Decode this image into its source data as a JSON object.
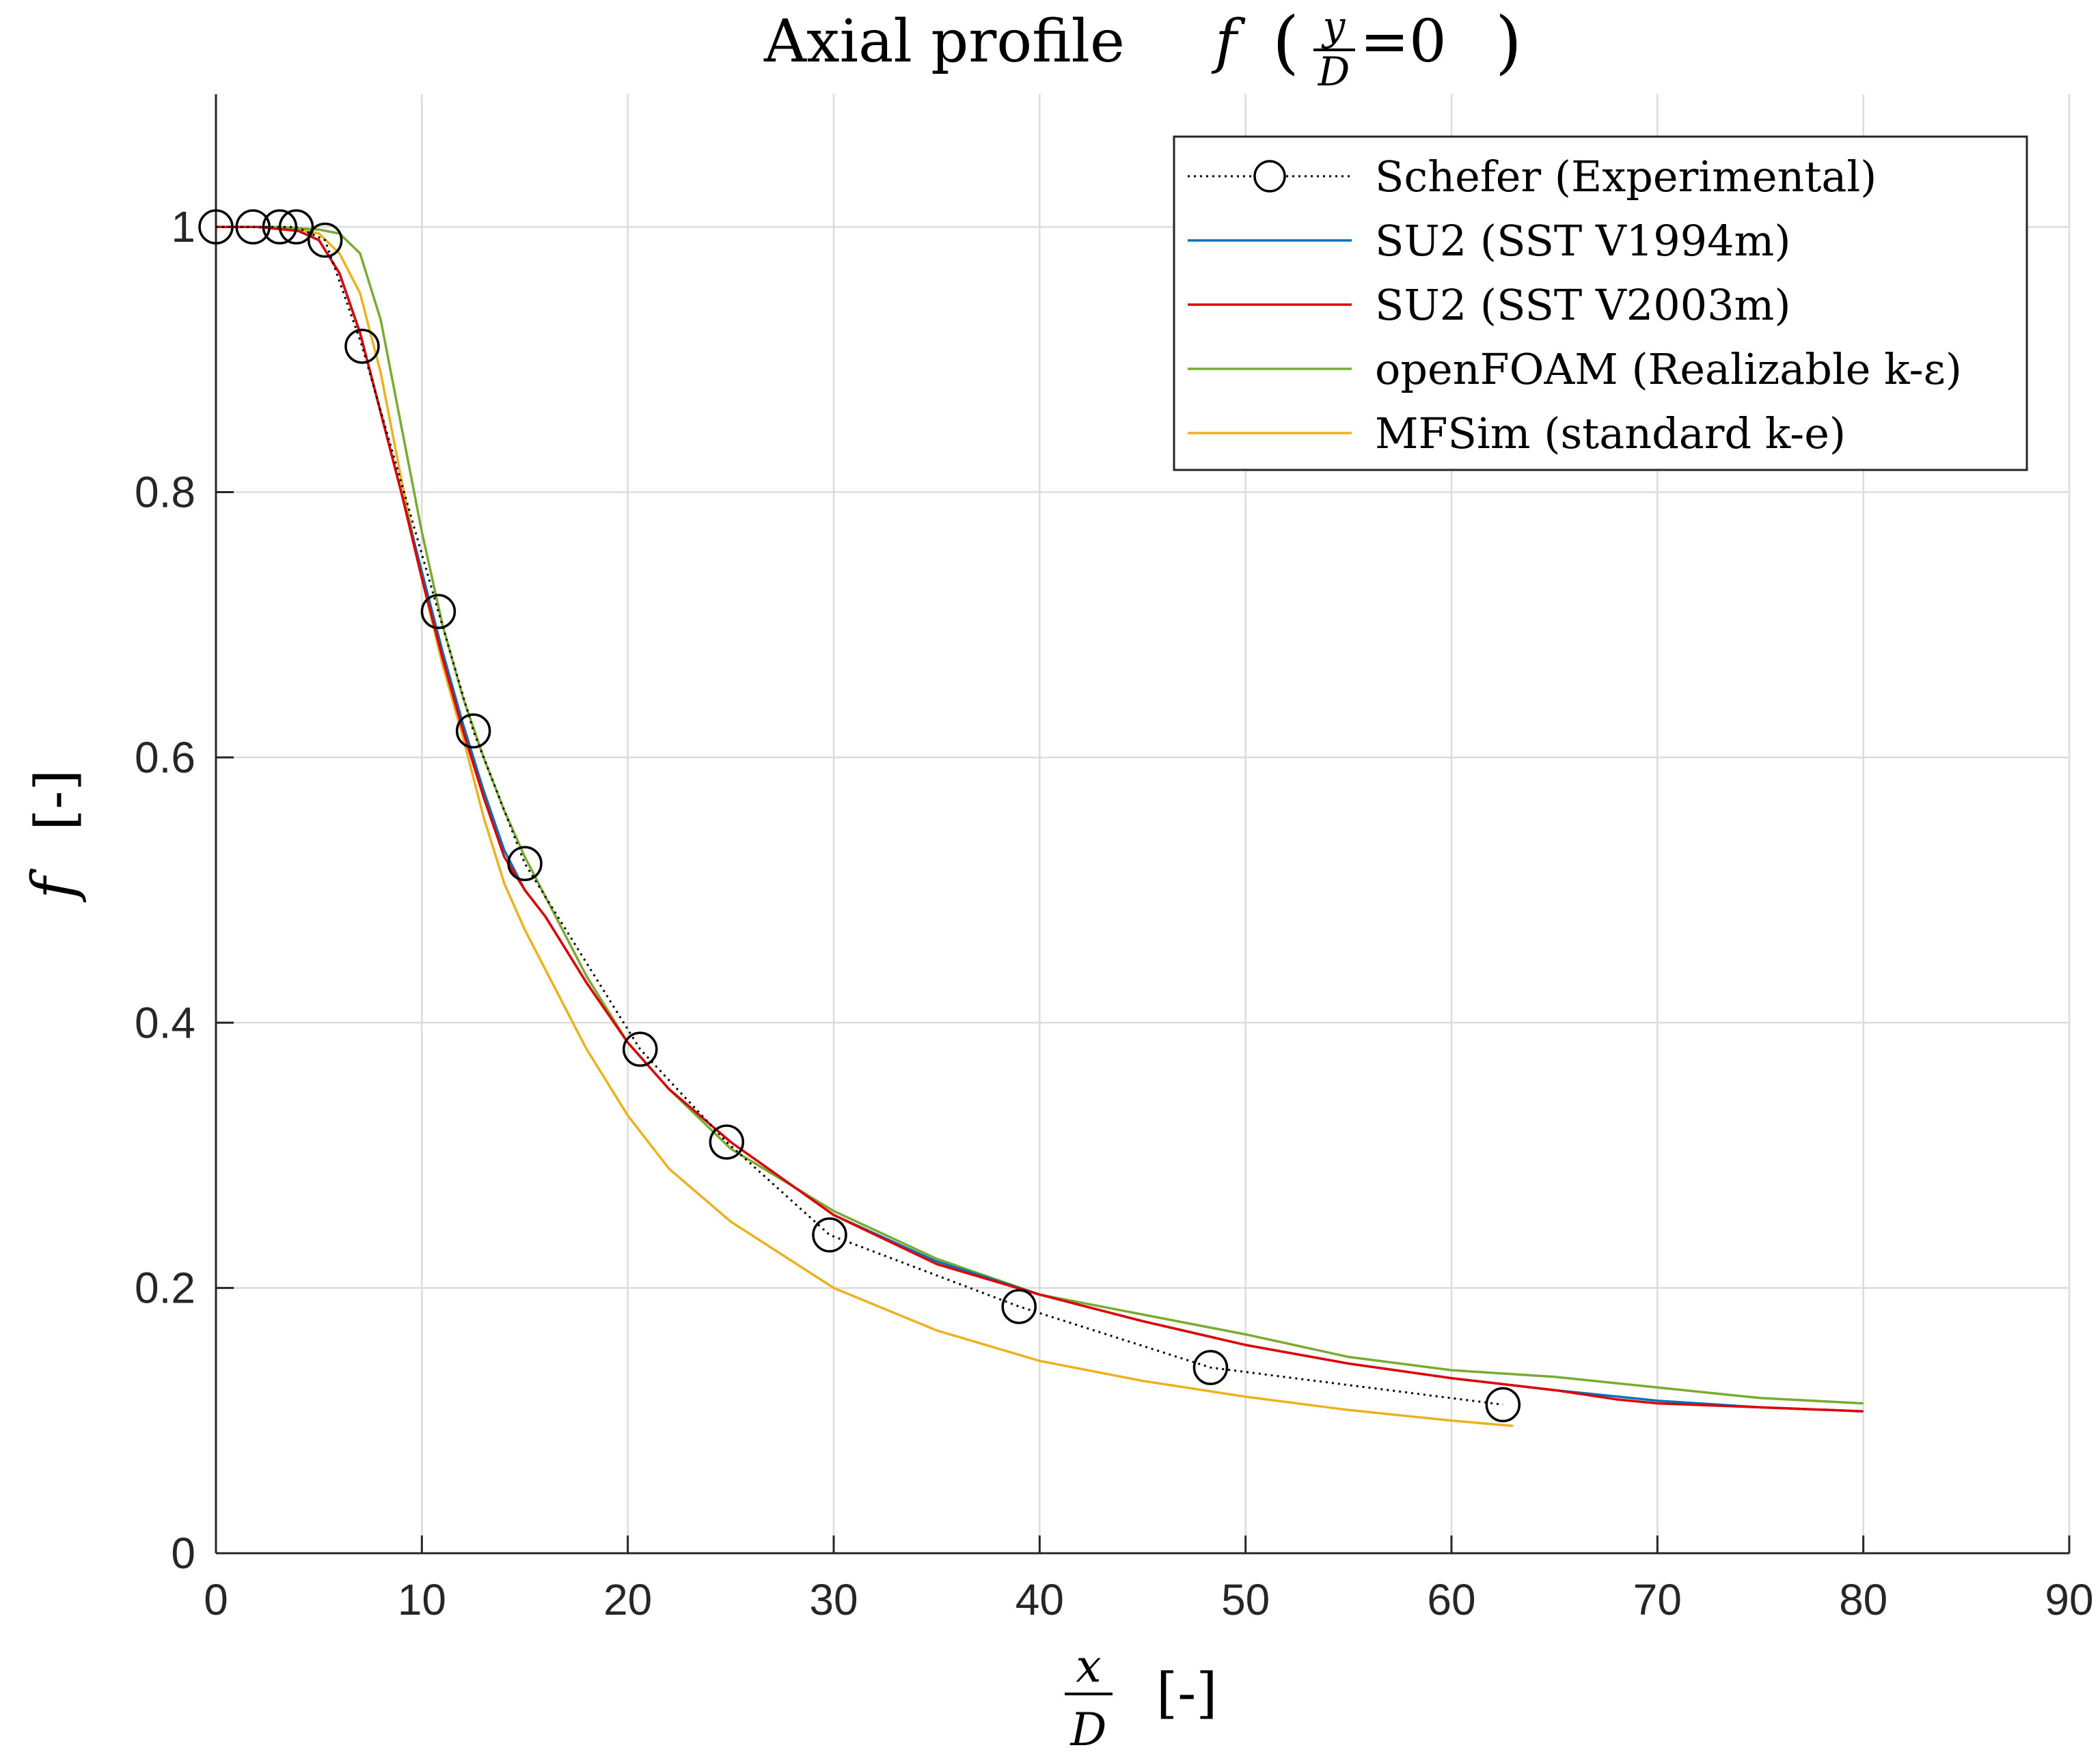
{
  "chart_data": {
    "type": "line",
    "title": {
      "text": "Axial profile ",
      "var": "f",
      "open": "(",
      "frac_num": "y",
      "frac_den": "D",
      "eq": "=0",
      "close": ")"
    },
    "xlabel": {
      "frac_num": "x",
      "frac_den": "D",
      "unit": "[-]"
    },
    "ylabel": {
      "var": "f",
      "unit": "[-]"
    },
    "xlim": [
      0,
      90
    ],
    "ylim": [
      0,
      1.1
    ],
    "xticks": [
      0,
      10,
      20,
      30,
      40,
      50,
      60,
      70,
      80,
      90
    ],
    "xtick_labels": [
      "0",
      "10",
      "20",
      "30",
      "40",
      "50",
      "60",
      "70",
      "80",
      "90"
    ],
    "yticks": [
      0,
      0.2,
      0.4,
      0.6,
      0.8,
      1.0
    ],
    "ytick_labels": [
      "0",
      "0.2",
      "0.4",
      "0.6",
      "0.8",
      "1"
    ],
    "grid": true,
    "legend_position": "top-right",
    "series": [
      {
        "name": "Schefer (Experimental)",
        "color": "#000000",
        "style": "dotted",
        "marker": "circle",
        "x": [
          0,
          1.8,
          3.1,
          3.9,
          5.3,
          7.1,
          10.8,
          12.5,
          15.0,
          20.6,
          24.8,
          29.8,
          39.0,
          48.3,
          62.5
        ],
        "y": [
          1.0,
          1.0,
          1.0,
          1.0,
          0.99,
          0.91,
          0.71,
          0.62,
          0.52,
          0.38,
          0.31,
          0.24,
          0.186,
          0.14,
          0.112
        ]
      },
      {
        "name": "SU2 (SST V1994m)",
        "color": "#0072BD",
        "style": "solid",
        "x": [
          0,
          2,
          4,
          5,
          6,
          7,
          8,
          9,
          10,
          11,
          12,
          13,
          14,
          15,
          16,
          18,
          20,
          22,
          25,
          30,
          35,
          40,
          45,
          50,
          55,
          60,
          65,
          70,
          75,
          80
        ],
        "y": [
          1.0,
          1.0,
          0.997,
          0.99,
          0.965,
          0.92,
          0.86,
          0.8,
          0.74,
          0.68,
          0.625,
          0.575,
          0.53,
          0.5,
          0.48,
          0.43,
          0.385,
          0.35,
          0.31,
          0.255,
          0.22,
          0.195,
          0.175,
          0.157,
          0.143,
          0.132,
          0.123,
          0.115,
          0.11,
          0.107
        ]
      },
      {
        "name": "SU2 (SST V2003m)",
        "color": "#E00000",
        "style": "solid",
        "x": [
          0,
          2,
          4,
          5,
          6,
          7,
          8,
          9,
          10,
          11,
          12,
          13,
          14,
          15,
          16,
          18,
          20,
          22,
          25,
          30,
          35,
          40,
          45,
          50,
          55,
          60,
          65,
          68,
          70,
          75,
          80
        ],
        "y": [
          1.0,
          1.0,
          0.997,
          0.99,
          0.965,
          0.92,
          0.86,
          0.8,
          0.735,
          0.675,
          0.62,
          0.57,
          0.525,
          0.5,
          0.48,
          0.43,
          0.385,
          0.35,
          0.31,
          0.255,
          0.218,
          0.195,
          0.175,
          0.157,
          0.143,
          0.132,
          0.123,
          0.116,
          0.113,
          0.11,
          0.107
        ]
      },
      {
        "name": "openFOAM (Realizable k-ε)",
        "color": "#77AC30",
        "style": "solid",
        "x": [
          0,
          3,
          5,
          6,
          7,
          8,
          9,
          10,
          11,
          12,
          13,
          14,
          15,
          16,
          18,
          20,
          22,
          25,
          30,
          35,
          40,
          45,
          50,
          55,
          60,
          65,
          70,
          75,
          80
        ],
        "y": [
          1.0,
          1.0,
          0.998,
          0.995,
          0.98,
          0.93,
          0.85,
          0.77,
          0.7,
          0.645,
          0.6,
          0.56,
          0.525,
          0.495,
          0.435,
          0.385,
          0.35,
          0.305,
          0.258,
          0.222,
          0.195,
          0.18,
          0.165,
          0.148,
          0.138,
          0.133,
          0.125,
          0.117,
          0.113
        ]
      },
      {
        "name": "MFSim (standard k-e)",
        "color": "#EDB120",
        "style": "solid",
        "x": [
          0,
          2,
          4,
          5,
          6,
          7,
          8,
          9,
          10,
          11,
          12,
          13,
          14,
          15,
          16,
          18,
          20,
          22,
          25,
          30,
          35,
          40,
          45,
          50,
          55,
          60,
          63
        ],
        "y": [
          1.0,
          1.0,
          0.998,
          0.995,
          0.98,
          0.95,
          0.89,
          0.81,
          0.735,
          0.67,
          0.615,
          0.555,
          0.505,
          0.47,
          0.44,
          0.38,
          0.33,
          0.29,
          0.25,
          0.2,
          0.168,
          0.145,
          0.13,
          0.118,
          0.108,
          0.1,
          0.096
        ]
      }
    ]
  }
}
